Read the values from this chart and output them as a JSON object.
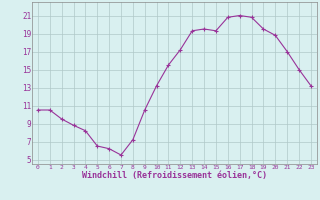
{
  "x": [
    0,
    1,
    2,
    3,
    4,
    5,
    6,
    7,
    8,
    9,
    10,
    11,
    12,
    13,
    14,
    15,
    16,
    17,
    18,
    19,
    20,
    21,
    22,
    23
  ],
  "y": [
    10.5,
    10.5,
    9.5,
    8.8,
    8.2,
    6.5,
    6.2,
    5.5,
    7.2,
    10.5,
    13.2,
    15.5,
    17.2,
    19.3,
    19.5,
    19.3,
    20.8,
    21.0,
    20.8,
    19.5,
    18.8,
    17.0,
    15.0,
    13.2
  ],
  "line_color": "#993399",
  "marker": "+",
  "marker_size": 3,
  "marker_linewidth": 0.8,
  "bg_color": "#d9f0f0",
  "grid_color": "#b0c8c8",
  "xlabel": "Windchill (Refroidissement éolien,°C)",
  "yticks": [
    5,
    7,
    9,
    11,
    13,
    15,
    17,
    19,
    21
  ],
  "xticks": [
    0,
    1,
    2,
    3,
    4,
    5,
    6,
    7,
    8,
    9,
    10,
    11,
    12,
    13,
    14,
    15,
    16,
    17,
    18,
    19,
    20,
    21,
    22,
    23
  ],
  "ylim": [
    4.5,
    22.5
  ],
  "xlim": [
    -0.5,
    23.5
  ],
  "xtick_fontsize": 4.5,
  "ytick_fontsize": 5.5,
  "xlabel_fontsize": 6.0,
  "linewidth": 0.8
}
